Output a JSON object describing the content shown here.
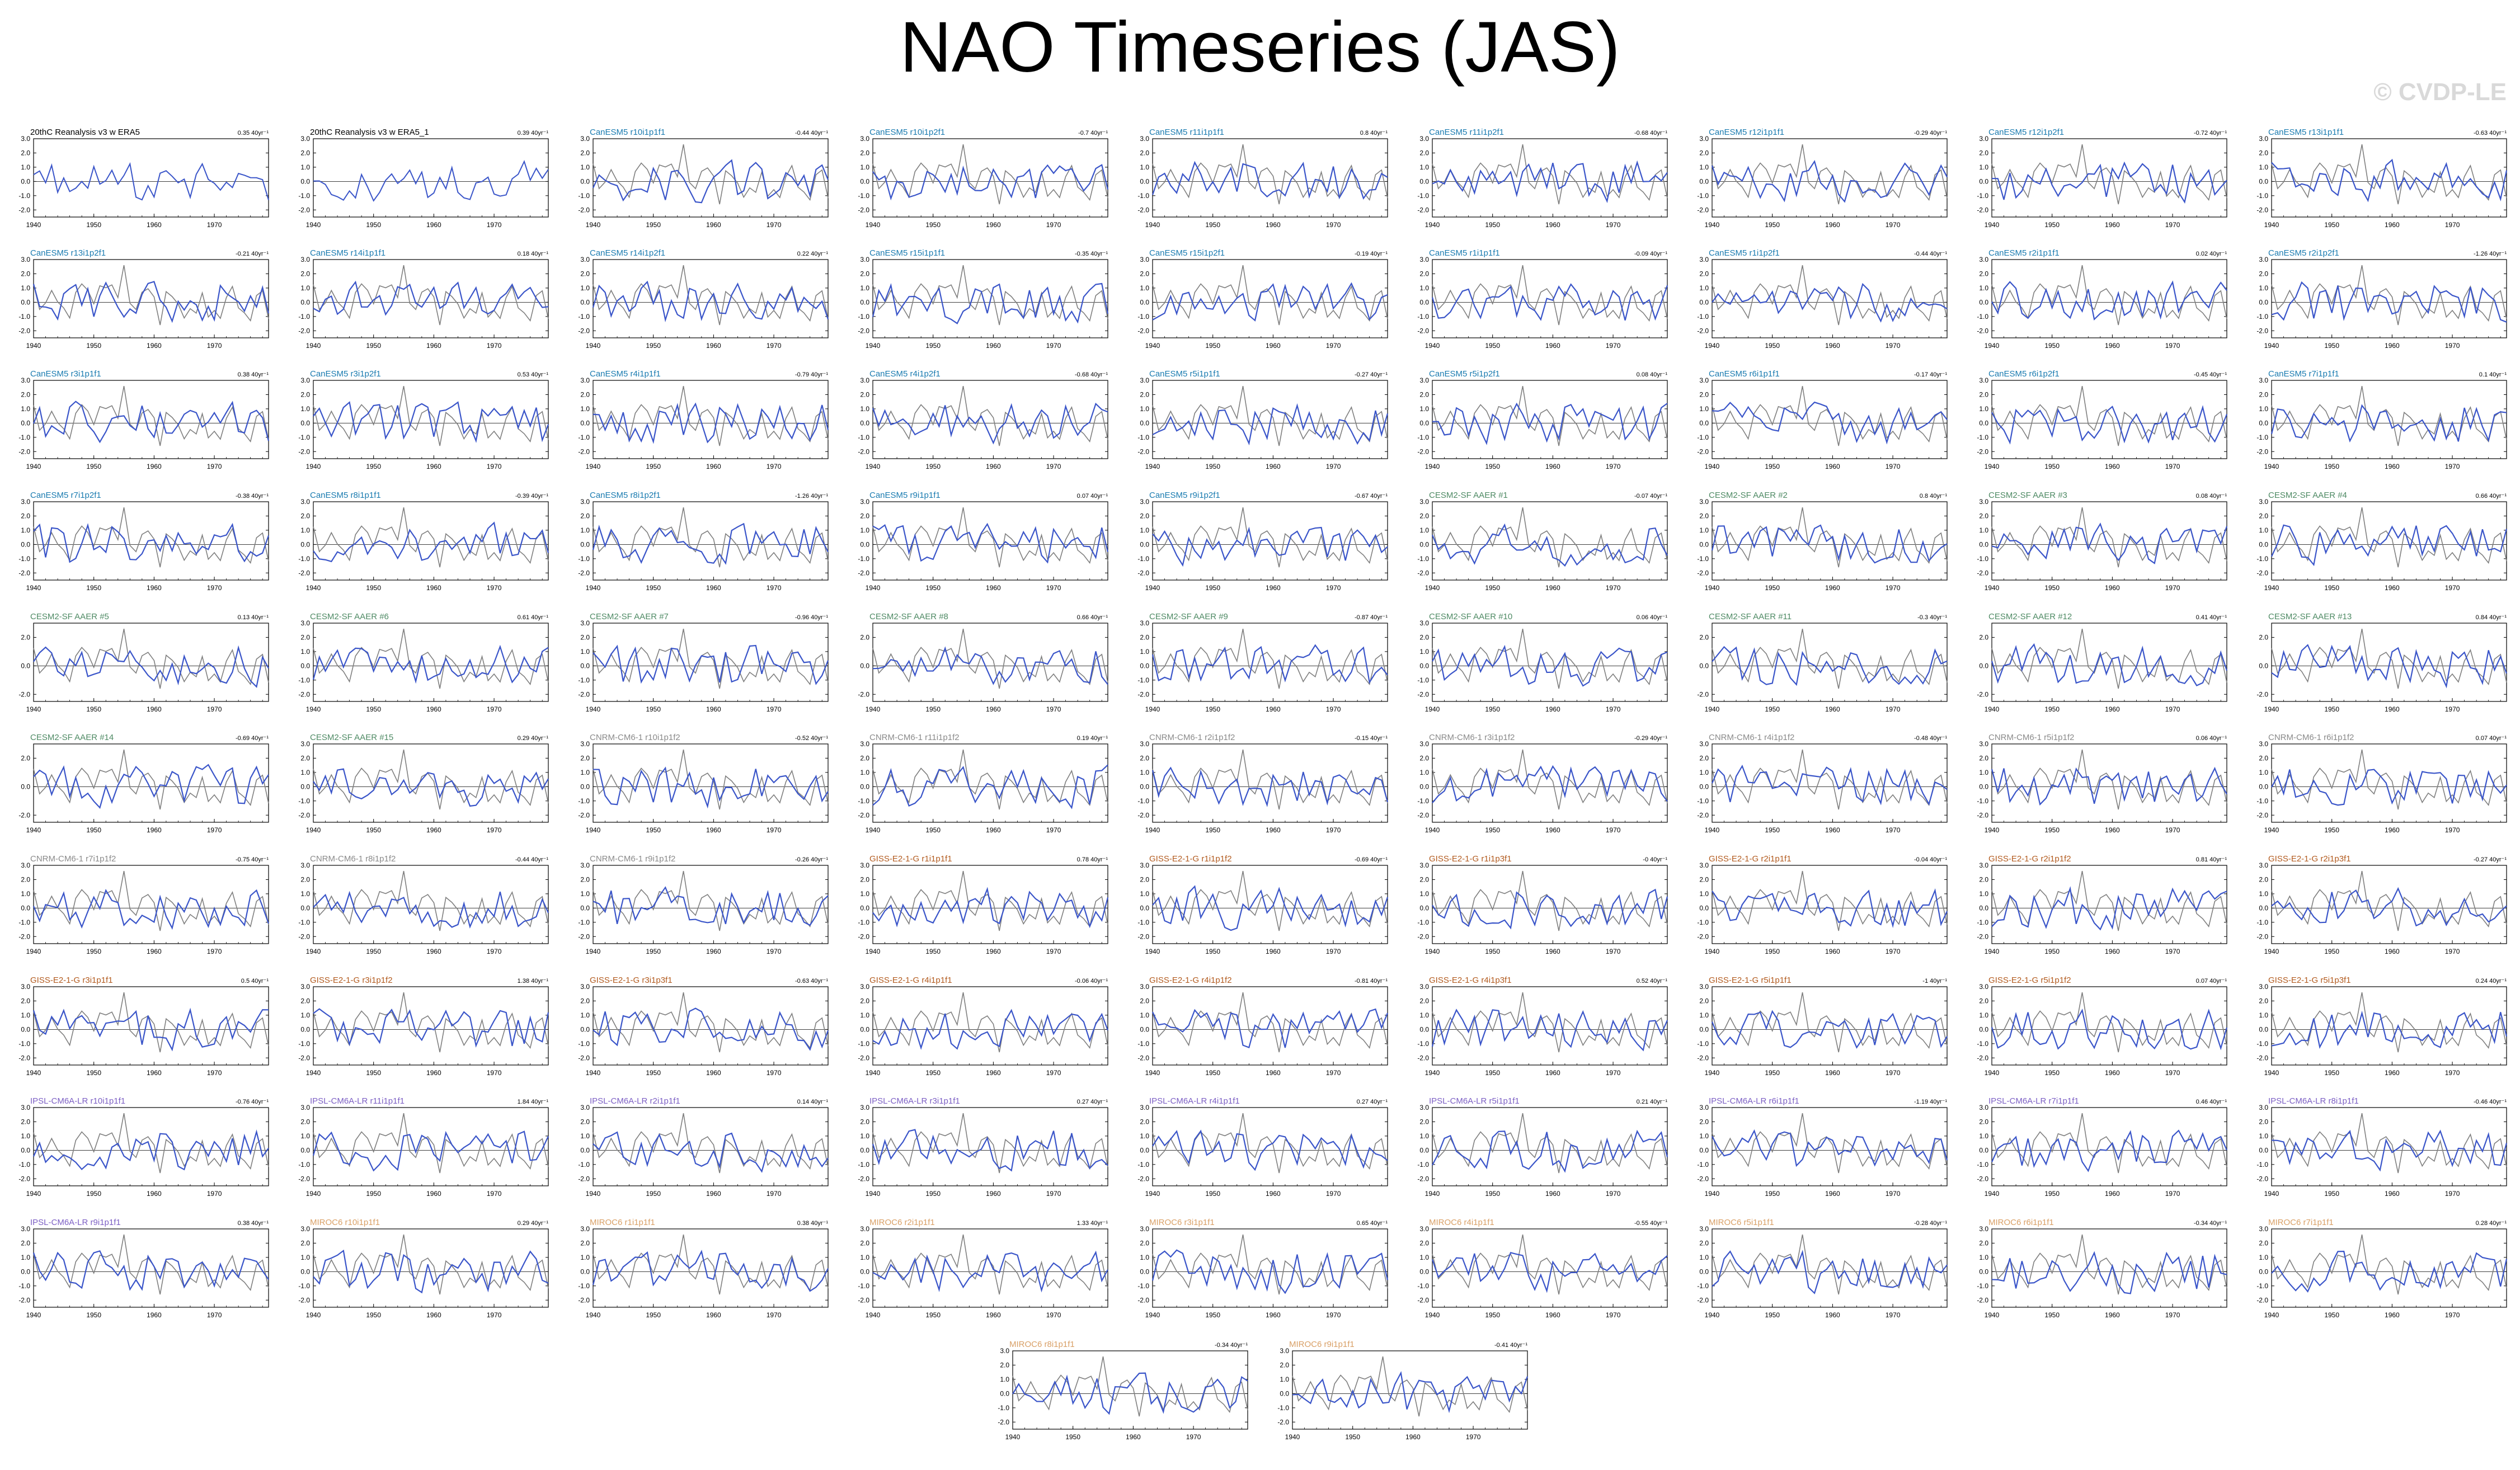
{
  "page": {
    "title": "NAO Timeseries (JAS)",
    "watermark": "© CVDP-LE"
  },
  "colors": {
    "model_line": "#3a55c9",
    "obs_line": "#7f7f7f",
    "zero_line": "#000000",
    "title_obs": "#000000",
    "title_CanESM5": "#1a7bb0",
    "title_CESM2-SF-AAER": "#4e8a64",
    "title_CNRM-CM6-1": "#8a8a8a",
    "title_GISS-E2-1-G": "#b25a1e",
    "title_IPSL-CM6A-LR": "#7c5fc4",
    "title_MIROC6": "#d9a066"
  },
  "chart_data": {
    "type": "line",
    "x_range": [
      1940,
      1979
    ],
    "ylim": [
      -2.5,
      3.0
    ],
    "xticks": [
      "1940",
      "1950",
      "1960",
      "1970"
    ],
    "yticks": [
      "3.0",
      "2.0",
      "1.0",
      "0.0",
      "-1.0",
      "-2.0"
    ],
    "yticks_sparse": [
      "2.0",
      "0.0",
      "-2.0"
    ],
    "panels": [
      {
        "title": "20thC Reanalysis v3 w ERA5",
        "trend": "0.35 40yr⁻¹",
        "group": "obs"
      },
      {
        "title": "20thC Reanalysis v3 w ERA5_1",
        "trend": "0.39 40yr⁻¹",
        "group": "obs"
      },
      {
        "title": "CanESM5 r10i1p1f1",
        "trend": "-0.44 40yr⁻¹",
        "group": "CanESM5"
      },
      {
        "title": "CanESM5 r10i1p2f1",
        "trend": "-0.7 40yr⁻¹",
        "group": "CanESM5"
      },
      {
        "title": "CanESM5 r11i1p1f1",
        "trend": "0.8 40yr⁻¹",
        "group": "CanESM5"
      },
      {
        "title": "CanESM5 r11i1p2f1",
        "trend": "-0.68 40yr⁻¹",
        "group": "CanESM5"
      },
      {
        "title": "CanESM5 r12i1p1f1",
        "trend": "-0.29 40yr⁻¹",
        "group": "CanESM5"
      },
      {
        "title": "CanESM5 r12i1p2f1",
        "trend": "-0.72 40yr⁻¹",
        "group": "CanESM5"
      },
      {
        "title": "CanESM5 r13i1p1f1",
        "trend": "-0.63 40yr⁻¹",
        "group": "CanESM5"
      },
      {
        "title": "CanESM5 r13i1p2f1",
        "trend": "-0.21 40yr⁻¹",
        "group": "CanESM5"
      },
      {
        "title": "CanESM5 r14i1p1f1",
        "trend": "0.18 40yr⁻¹",
        "group": "CanESM5"
      },
      {
        "title": "CanESM5 r14i1p2f1",
        "trend": "0.22 40yr⁻¹",
        "group": "CanESM5"
      },
      {
        "title": "CanESM5 r15i1p1f1",
        "trend": "-0.35 40yr⁻¹",
        "group": "CanESM5"
      },
      {
        "title": "CanESM5 r15i1p2f1",
        "trend": "-0.19 40yr⁻¹",
        "group": "CanESM5"
      },
      {
        "title": "CanESM5 r1i1p1f1",
        "trend": "-0.09 40yr⁻¹",
        "group": "CanESM5"
      },
      {
        "title": "CanESM5 r1i1p2f1",
        "trend": "-0.44 40yr⁻¹",
        "group": "CanESM5"
      },
      {
        "title": "CanESM5 r2i1p1f1",
        "trend": "0.02 40yr⁻¹",
        "group": "CanESM5"
      },
      {
        "title": "CanESM5 r2i1p2f1",
        "trend": "-1.26 40yr⁻¹",
        "group": "CanESM5"
      },
      {
        "title": "CanESM5 r3i1p1f1",
        "trend": "0.38 40yr⁻¹",
        "group": "CanESM5"
      },
      {
        "title": "CanESM5 r3i1p2f1",
        "trend": "0.53 40yr⁻¹",
        "group": "CanESM5"
      },
      {
        "title": "CanESM5 r4i1p1f1",
        "trend": "-0.79 40yr⁻¹",
        "group": "CanESM5"
      },
      {
        "title": "CanESM5 r4i1p2f1",
        "trend": "-0.68 40yr⁻¹",
        "group": "CanESM5"
      },
      {
        "title": "CanESM5 r5i1p1f1",
        "trend": "-0.27 40yr⁻¹",
        "group": "CanESM5"
      },
      {
        "title": "CanESM5 r5i1p2f1",
        "trend": "0.08 40yr⁻¹",
        "group": "CanESM5"
      },
      {
        "title": "CanESM5 r6i1p1f1",
        "trend": "-0.17 40yr⁻¹",
        "group": "CanESM5"
      },
      {
        "title": "CanESM5 r6i1p2f1",
        "trend": "-0.45 40yr⁻¹",
        "group": "CanESM5"
      },
      {
        "title": "CanESM5 r7i1p1f1",
        "trend": "0.1 40yr⁻¹",
        "group": "CanESM5"
      },
      {
        "title": "CanESM5 r7i1p2f1",
        "trend": "-0.38 40yr⁻¹",
        "group": "CanESM5"
      },
      {
        "title": "CanESM5 r8i1p1f1",
        "trend": "-0.39 40yr⁻¹",
        "group": "CanESM5"
      },
      {
        "title": "CanESM5 r8i1p2f1",
        "trend": "-1.26 40yr⁻¹",
        "group": "CanESM5"
      },
      {
        "title": "CanESM5 r9i1p1f1",
        "trend": "0.07 40yr⁻¹",
        "group": "CanESM5"
      },
      {
        "title": "CanESM5 r9i1p2f1",
        "trend": "-0.67 40yr⁻¹",
        "group": "CanESM5"
      },
      {
        "title": "CESM2-SF AAER #1",
        "trend": "-0.07 40yr⁻¹",
        "group": "CESM2-SF-AAER"
      },
      {
        "title": "CESM2-SF AAER #2",
        "trend": "0.8 40yr⁻¹",
        "group": "CESM2-SF-AAER"
      },
      {
        "title": "CESM2-SF AAER #3",
        "trend": "0.08 40yr⁻¹",
        "group": "CESM2-SF-AAER"
      },
      {
        "title": "CESM2-SF AAER #4",
        "trend": "0.66 40yr⁻¹",
        "group": "CESM2-SF-AAER"
      },
      {
        "title": "CESM2-SF AAER #5",
        "trend": "0.13 40yr⁻¹",
        "group": "CESM2-SF-AAER"
      },
      {
        "title": "CESM2-SF AAER #6",
        "trend": "0.61 40yr⁻¹",
        "group": "CESM2-SF-AAER"
      },
      {
        "title": "CESM2-SF AAER #7",
        "trend": "-0.96 40yr⁻¹",
        "group": "CESM2-SF-AAER"
      },
      {
        "title": "CESM2-SF AAER #8",
        "trend": "0.66 40yr⁻¹",
        "group": "CESM2-SF-AAER"
      },
      {
        "title": "CESM2-SF AAER #9",
        "trend": "-0.87 40yr⁻¹",
        "group": "CESM2-SF-AAER"
      },
      {
        "title": "CESM2-SF AAER #10",
        "trend": "0.06 40yr⁻¹",
        "group": "CESM2-SF-AAER"
      },
      {
        "title": "CESM2-SF AAER #11",
        "trend": "-0.3 40yr⁻¹",
        "group": "CESM2-SF-AAER"
      },
      {
        "title": "CESM2-SF AAER #12",
        "trend": "0.41 40yr⁻¹",
        "group": "CESM2-SF-AAER"
      },
      {
        "title": "CESM2-SF AAER #13",
        "trend": "0.84 40yr⁻¹",
        "group": "CESM2-SF-AAER"
      },
      {
        "title": "CESM2-SF AAER #14",
        "trend": "-0.69 40yr⁻¹",
        "group": "CESM2-SF-AAER"
      },
      {
        "title": "CESM2-SF AAER #15",
        "trend": "0.29 40yr⁻¹",
        "group": "CESM2-SF-AAER"
      },
      {
        "title": "CNRM-CM6-1 r10i1p1f2",
        "trend": "-0.52 40yr⁻¹",
        "group": "CNRM-CM6-1"
      },
      {
        "title": "CNRM-CM6-1 r11i1p1f2",
        "trend": "0.19 40yr⁻¹",
        "group": "CNRM-CM6-1"
      },
      {
        "title": "CNRM-CM6-1 r2i1p1f2",
        "trend": "-0.15 40yr⁻¹",
        "group": "CNRM-CM6-1"
      },
      {
        "title": "CNRM-CM6-1 r3i1p1f2",
        "trend": "-0.29 40yr⁻¹",
        "group": "CNRM-CM6-1"
      },
      {
        "title": "CNRM-CM6-1 r4i1p1f2",
        "trend": "-0.48 40yr⁻¹",
        "group": "CNRM-CM6-1"
      },
      {
        "title": "CNRM-CM6-1 r5i1p1f2",
        "trend": "0.06 40yr⁻¹",
        "group": "CNRM-CM6-1"
      },
      {
        "title": "CNRM-CM6-1 r6i1p1f2",
        "trend": "0.07 40yr⁻¹",
        "group": "CNRM-CM6-1"
      },
      {
        "title": "CNRM-CM6-1 r7i1p1f2",
        "trend": "-0.75 40yr⁻¹",
        "group": "CNRM-CM6-1"
      },
      {
        "title": "CNRM-CM6-1 r8i1p1f2",
        "trend": "-0.44 40yr⁻¹",
        "group": "CNRM-CM6-1"
      },
      {
        "title": "CNRM-CM6-1 r9i1p1f2",
        "trend": "-0.26 40yr⁻¹",
        "group": "CNRM-CM6-1"
      },
      {
        "title": "GISS-E2-1-G r1i1p1f1",
        "trend": "0.78 40yr⁻¹",
        "group": "GISS-E2-1-G"
      },
      {
        "title": "GISS-E2-1-G r1i1p1f2",
        "trend": "-0.69 40yr⁻¹",
        "group": "GISS-E2-1-G"
      },
      {
        "title": "GISS-E2-1-G r1i1p3f1",
        "trend": "-0 40yr⁻¹",
        "group": "GISS-E2-1-G"
      },
      {
        "title": "GISS-E2-1-G r2i1p1f1",
        "trend": "-0.04 40yr⁻¹",
        "group": "GISS-E2-1-G"
      },
      {
        "title": "GISS-E2-1-G r2i1p1f2",
        "trend": "0.81 40yr⁻¹",
        "group": "GISS-E2-1-G"
      },
      {
        "title": "GISS-E2-1-G r2i1p3f1",
        "trend": "-0.27 40yr⁻¹",
        "group": "GISS-E2-1-G"
      },
      {
        "title": "GISS-E2-1-G r3i1p1f1",
        "trend": "0.5 40yr⁻¹",
        "group": "GISS-E2-1-G"
      },
      {
        "title": "GISS-E2-1-G r3i1p1f2",
        "trend": "1.38 40yr⁻¹",
        "group": "GISS-E2-1-G"
      },
      {
        "title": "GISS-E2-1-G r3i1p3f1",
        "trend": "-0.63 40yr⁻¹",
        "group": "GISS-E2-1-G"
      },
      {
        "title": "GISS-E2-1-G r4i1p1f1",
        "trend": "-0.06 40yr⁻¹",
        "group": "GISS-E2-1-G"
      },
      {
        "title": "GISS-E2-1-G r4i1p1f2",
        "trend": "-0.81 40yr⁻¹",
        "group": "GISS-E2-1-G"
      },
      {
        "title": "GISS-E2-1-G r4i1p3f1",
        "trend": "0.52 40yr⁻¹",
        "group": "GISS-E2-1-G"
      },
      {
        "title": "GISS-E2-1-G r5i1p1f1",
        "trend": "-1 40yr⁻¹",
        "group": "GISS-E2-1-G"
      },
      {
        "title": "GISS-E2-1-G r5i1p1f2",
        "trend": "0.07 40yr⁻¹",
        "group": "GISS-E2-1-G"
      },
      {
        "title": "GISS-E2-1-G r5i1p3f1",
        "trend": "0.24 40yr⁻¹",
        "group": "GISS-E2-1-G"
      },
      {
        "title": "IPSL-CM6A-LR r10i1p1f1",
        "trend": "-0.76 40yr⁻¹",
        "group": "IPSL-CM6A-LR"
      },
      {
        "title": "IPSL-CM6A-LR r11i1p1f1",
        "trend": "1.84 40yr⁻¹",
        "group": "IPSL-CM6A-LR"
      },
      {
        "title": "IPSL-CM6A-LR r2i1p1f1",
        "trend": "0.14 40yr⁻¹",
        "group": "IPSL-CM6A-LR"
      },
      {
        "title": "IPSL-CM6A-LR r3i1p1f1",
        "trend": "0.27 40yr⁻¹",
        "group": "IPSL-CM6A-LR"
      },
      {
        "title": "IPSL-CM6A-LR r4i1p1f1",
        "trend": "0.27 40yr⁻¹",
        "group": "IPSL-CM6A-LR"
      },
      {
        "title": "IPSL-CM6A-LR r5i1p1f1",
        "trend": "0.21 40yr⁻¹",
        "group": "IPSL-CM6A-LR"
      },
      {
        "title": "IPSL-CM6A-LR r6i1p1f1",
        "trend": "-1.19 40yr⁻¹",
        "group": "IPSL-CM6A-LR"
      },
      {
        "title": "IPSL-CM6A-LR r7i1p1f1",
        "trend": "0.46 40yr⁻¹",
        "group": "IPSL-CM6A-LR"
      },
      {
        "title": "IPSL-CM6A-LR r8i1p1f1",
        "trend": "-0.46 40yr⁻¹",
        "group": "IPSL-CM6A-LR"
      },
      {
        "title": "IPSL-CM6A-LR r9i1p1f1",
        "trend": "0.38 40yr⁻¹",
        "group": "IPSL-CM6A-LR"
      },
      {
        "title": "MIROC6 r10i1p1f1",
        "trend": "0.29 40yr⁻¹",
        "group": "MIROC6"
      },
      {
        "title": "MIROC6 r1i1p1f1",
        "trend": "0.38 40yr⁻¹",
        "group": "MIROC6"
      },
      {
        "title": "MIROC6 r2i1p1f1",
        "trend": "1.33 40yr⁻¹",
        "group": "MIROC6"
      },
      {
        "title": "MIROC6 r3i1p1f1",
        "trend": "0.65 40yr⁻¹",
        "group": "MIROC6"
      },
      {
        "title": "MIROC6 r4i1p1f1",
        "trend": "-0.55 40yr⁻¹",
        "group": "MIROC6"
      },
      {
        "title": "MIROC6 r5i1p1f1",
        "trend": "-0.28 40yr⁻¹",
        "group": "MIROC6"
      },
      {
        "title": "MIROC6 r6i1p1f1",
        "trend": "-0.34 40yr⁻¹",
        "group": "MIROC6"
      },
      {
        "title": "MIROC6 r7i1p1f1",
        "trend": "0.28 40yr⁻¹",
        "group": "MIROC6"
      },
      {
        "title": "MIROC6 r8i1p1f1",
        "trend": "-0.34 40yr⁻¹",
        "group": "MIROC6"
      },
      {
        "title": "MIROC6 r9i1p1f1",
        "trend": "-0.41 40yr⁻¹",
        "group": "MIROC6"
      }
    ]
  }
}
